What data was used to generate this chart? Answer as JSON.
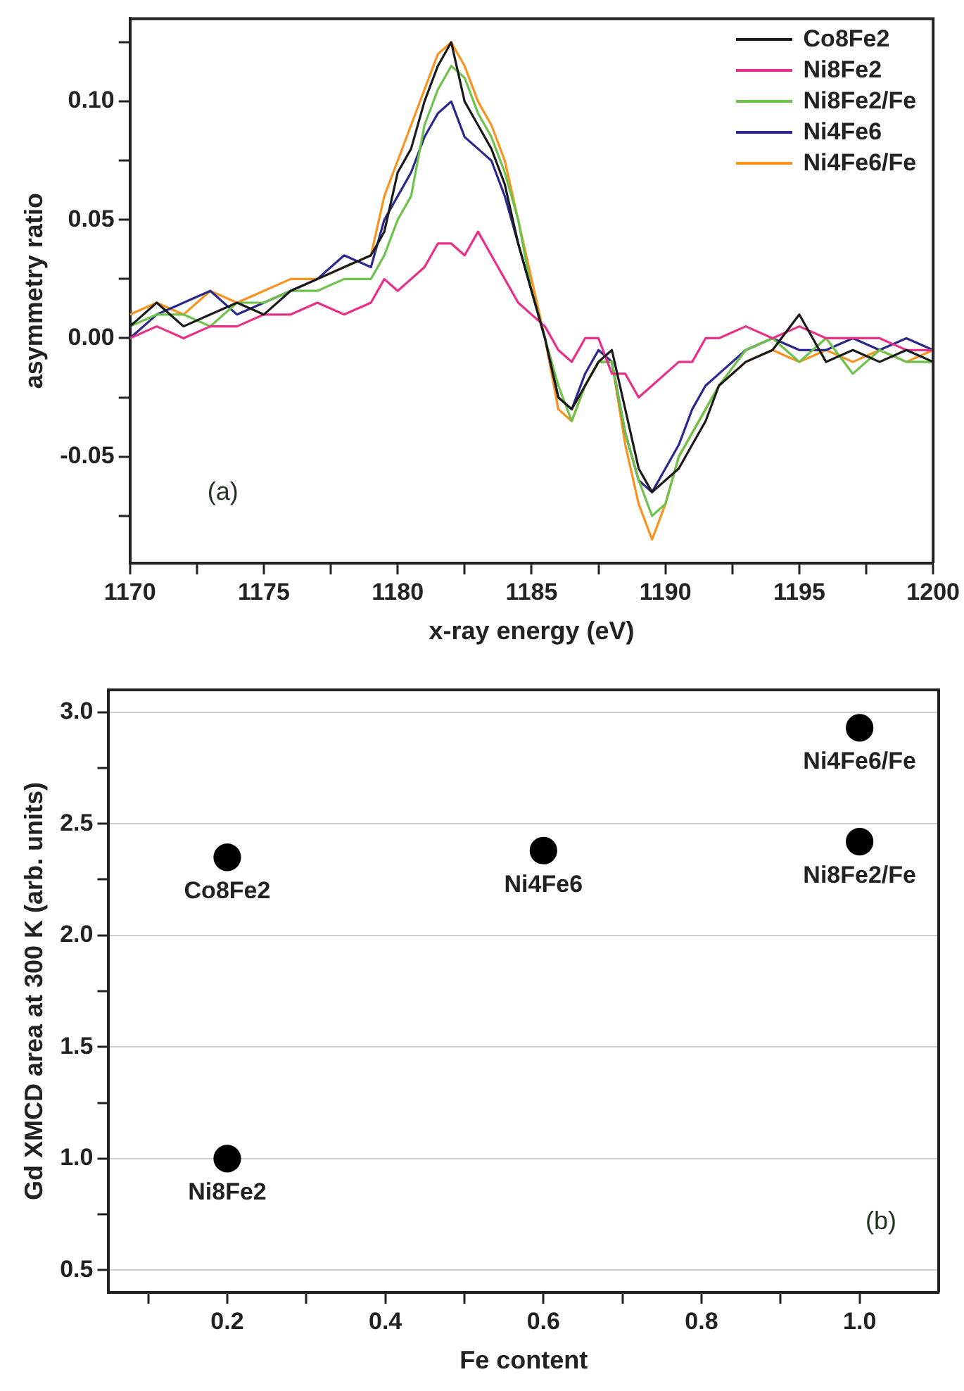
{
  "chart_data": [
    {
      "type": "line",
      "xlabel": "x-ray energy (eV)",
      "ylabel": "asymmetry ratio",
      "annotations": [
        "(a)"
      ],
      "legend": "top right",
      "marker": "none",
      "line_style": "solid",
      "xlim": [
        1170,
        1200
      ],
      "ylim": [
        -0.095,
        0.135
      ],
      "xticks": [
        1170,
        {
          "value": 1172.5,
          "label": null
        },
        1175,
        {
          "value": 1177.5,
          "label": null
        },
        1180,
        {
          "value": 1182.5,
          "label": null
        },
        1185,
        {
          "value": 1187.5,
          "label": null
        },
        1190,
        {
          "value": 1192.5,
          "label": null
        },
        1195,
        {
          "value": 1197.5,
          "label": null
        },
        1200
      ],
      "yticks": [
        {
          "value": -0.075,
          "label": null
        },
        {
          "value": -0.05,
          "label": "-0.05"
        },
        {
          "value": -0.025,
          "label": null
        },
        {
          "value": 0,
          "label": "0.00"
        },
        {
          "value": 0.025,
          "label": null
        },
        {
          "value": 0.05,
          "label": "0.05"
        },
        {
          "value": 0.075,
          "label": null
        },
        {
          "value": 0.1,
          "label": "0.10"
        },
        {
          "value": 0.125,
          "label": null
        }
      ],
      "x": [
        1170,
        1171,
        1172,
        1173,
        1174,
        1175,
        1176,
        1177,
        1178,
        1179,
        1179.5,
        1180,
        1180.5,
        1181,
        1181.5,
        1182,
        1182.5,
        1183,
        1183.5,
        1184,
        1184.5,
        1185,
        1185.5,
        1186,
        1186.5,
        1187,
        1187.5,
        1188,
        1188.5,
        1189,
        1189.5,
        1190,
        1190.5,
        1191,
        1191.5,
        1192,
        1193,
        1194,
        1195,
        1196,
        1197,
        1198,
        1199,
        1200
      ],
      "series": [
        {
          "name": "Co8Fe2",
          "color": "#1a1a1a",
          "values": [
            0.005,
            0.015,
            0.005,
            0.01,
            0.015,
            0.01,
            0.02,
            0.025,
            0.03,
            0.035,
            0.045,
            0.07,
            0.08,
            0.1,
            0.115,
            0.125,
            0.1,
            0.09,
            0.08,
            0.065,
            0.04,
            0.02,
            0.0,
            -0.025,
            -0.03,
            -0.02,
            -0.01,
            -0.005,
            -0.03,
            -0.055,
            -0.065,
            -0.06,
            -0.055,
            -0.045,
            -0.035,
            -0.02,
            -0.01,
            -0.005,
            0.01,
            -0.01,
            -0.005,
            -0.01,
            -0.005,
            -0.01
          ]
        },
        {
          "name": "Ni8Fe2",
          "color": "#e8308a",
          "values": [
            0.0,
            0.005,
            0.0,
            0.005,
            0.005,
            0.01,
            0.01,
            0.015,
            0.01,
            0.015,
            0.025,
            0.02,
            0.025,
            0.03,
            0.04,
            0.04,
            0.035,
            0.045,
            0.035,
            0.025,
            0.015,
            0.01,
            0.005,
            -0.005,
            -0.01,
            0.0,
            0.0,
            -0.015,
            -0.015,
            -0.025,
            -0.02,
            -0.015,
            -0.01,
            -0.01,
            0.0,
            0.0,
            0.005,
            0.0,
            0.005,
            0.0,
            0.0,
            0.0,
            -0.005,
            -0.005
          ]
        },
        {
          "name": "Ni8Fe2/Fe",
          "color": "#6cc24a",
          "values": [
            0.005,
            0.01,
            0.01,
            0.005,
            0.015,
            0.015,
            0.02,
            0.02,
            0.025,
            0.025,
            0.035,
            0.05,
            0.06,
            0.09,
            0.105,
            0.115,
            0.11,
            0.095,
            0.085,
            0.07,
            0.05,
            0.02,
            0.0,
            -0.02,
            -0.035,
            -0.02,
            -0.01,
            -0.01,
            -0.04,
            -0.06,
            -0.075,
            -0.07,
            -0.05,
            -0.04,
            -0.03,
            -0.02,
            -0.005,
            0.0,
            -0.01,
            0.0,
            -0.015,
            -0.005,
            -0.01,
            -0.01
          ]
        },
        {
          "name": "Ni4Fe6",
          "color": "#2b2a8c",
          "values": [
            0.0,
            0.01,
            0.015,
            0.02,
            0.01,
            0.015,
            0.02,
            0.025,
            0.035,
            0.03,
            0.05,
            0.06,
            0.07,
            0.085,
            0.095,
            0.1,
            0.085,
            0.08,
            0.075,
            0.06,
            0.04,
            0.02,
            0.0,
            -0.025,
            -0.03,
            -0.015,
            -0.005,
            -0.01,
            -0.04,
            -0.06,
            -0.065,
            -0.055,
            -0.045,
            -0.03,
            -0.02,
            -0.015,
            -0.005,
            0.0,
            -0.005,
            -0.005,
            0.0,
            -0.005,
            0.0,
            -0.005
          ]
        },
        {
          "name": "Ni4Fe6/Fe",
          "color": "#f7931e",
          "values": [
            0.01,
            0.015,
            0.01,
            0.02,
            0.015,
            0.02,
            0.025,
            0.025,
            0.03,
            0.035,
            0.06,
            0.075,
            0.09,
            0.105,
            0.12,
            0.125,
            0.115,
            0.1,
            0.09,
            0.075,
            0.05,
            0.025,
            0.0,
            -0.03,
            -0.035,
            -0.02,
            -0.01,
            -0.01,
            -0.045,
            -0.07,
            -0.085,
            -0.07,
            -0.05,
            -0.04,
            -0.03,
            -0.02,
            -0.01,
            -0.005,
            -0.01,
            -0.005,
            -0.01,
            -0.005,
            -0.01,
            -0.005
          ]
        }
      ]
    },
    {
      "type": "scatter",
      "xlabel": "Fe content",
      "ylabel": "Gd XMCD area at 300 K (arb. units)",
      "marker": "circle",
      "grid": "y",
      "legend": false,
      "annotations": [
        "(b)",
        {
          "text": "Co8Fe2",
          "x": 0.2,
          "y": 2.35
        },
        {
          "text": "Ni8Fe2",
          "x": 0.2,
          "y": 1.0
        },
        {
          "text": "Ni4Fe6",
          "x": 0.6,
          "y": 2.38
        },
        {
          "text": "Ni4Fe6/Fe",
          "x": 1.0,
          "y": 2.93
        },
        {
          "text": "Ni8Fe2/Fe",
          "x": 1.0,
          "y": 2.42
        }
      ],
      "xlim": [
        0.05,
        1.1
      ],
      "ylim": [
        0.4,
        3.1
      ],
      "xticks": [
        {
          "value": 0.1,
          "label": null
        },
        {
          "value": 0.2,
          "label": "0.2"
        },
        {
          "value": 0.3,
          "label": null
        },
        {
          "value": 0.4,
          "label": "0.4"
        },
        {
          "value": 0.5,
          "label": null
        },
        {
          "value": 0.6,
          "label": "0.6"
        },
        {
          "value": 0.7,
          "label": null
        },
        {
          "value": 0.8,
          "label": "0.8"
        },
        {
          "value": 0.9,
          "label": null
        },
        {
          "value": 1.0,
          "label": "1.0"
        }
      ],
      "yticks": [
        {
          "value": 0.5,
          "label": "0.5"
        },
        {
          "value": 0.75,
          "label": null
        },
        {
          "value": 1.0,
          "label": "1.0"
        },
        {
          "value": 1.25,
          "label": null
        },
        {
          "value": 1.5,
          "label": "1.5"
        },
        {
          "value": 1.75,
          "label": null
        },
        {
          "value": 2.0,
          "label": "2.0"
        },
        {
          "value": 2.25,
          "label": null
        },
        {
          "value": 2.5,
          "label": "2.5"
        },
        {
          "value": 2.75,
          "label": null
        },
        {
          "value": 3.0,
          "label": "3.0"
        }
      ],
      "series": [
        {
          "color": "#000000",
          "x": [
            0.2,
            0.2,
            0.6,
            1.0,
            1.0
          ],
          "values": [
            2.35,
            1.0,
            2.38,
            2.93,
            2.42
          ]
        }
      ]
    }
  ]
}
